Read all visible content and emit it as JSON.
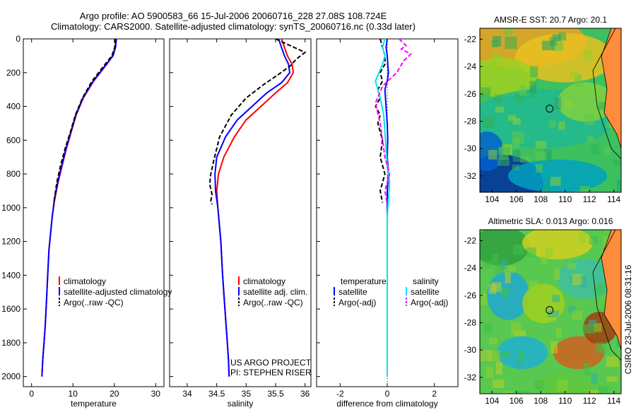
{
  "header": {
    "title_line1": "Argo profile: AO 5900583_66 15-Jul-2006 20060716_228 27.08S 108.724E",
    "title_line2": "Climatology: CARS2000. Satellite-adjusted climatology: synTS_20060716.nc (0.33d later)"
  },
  "colors": {
    "climatology": "#ff0000",
    "satellite": "#0000ff",
    "argo": "#000000",
    "salinity_satellite": "#00e5ee",
    "salinity_argo": "#ff00ff"
  },
  "chart_data": [
    {
      "id": "temperature",
      "type": "line",
      "xlabel": "temperature",
      "ylabel": "",
      "xlim": [
        -2,
        32
      ],
      "ylim": [
        2060,
        0
      ],
      "y_reversed": true,
      "xticks": [
        0,
        10,
        20,
        30
      ],
      "yticks": [
        0,
        200,
        400,
        600,
        800,
        1000,
        1200,
        1400,
        1600,
        1800,
        2000
      ],
      "legend": [
        "climatology",
        "satellite-adjusted climatology",
        "Argo(..raw -QC)"
      ],
      "series": [
        {
          "name": "climatology",
          "style": "solid",
          "x": [
            20.4,
            20.2,
            19.6,
            18.2,
            15.0,
            12.5,
            10.8,
            9.6,
            8.4,
            7.4,
            6.4,
            5.6,
            5.0,
            4.6,
            4.2,
            3.9,
            3.6,
            3.3,
            3.0,
            2.7,
            2.5
          ],
          "y": [
            0,
            50,
            100,
            150,
            250,
            350,
            450,
            550,
            650,
            750,
            850,
            950,
            1050,
            1150,
            1250,
            1400,
            1550,
            1700,
            1800,
            1900,
            2000
          ]
        },
        {
          "name": "satellite-adjusted climatology",
          "style": "solid",
          "x": [
            20.5,
            20.3,
            19.7,
            18.1,
            14.9,
            12.4,
            10.7,
            9.5,
            8.3,
            7.3,
            6.3,
            5.5,
            5.0,
            4.6,
            4.2,
            3.9,
            3.6,
            3.3,
            3.0,
            2.7,
            2.5
          ],
          "y": [
            0,
            50,
            100,
            150,
            250,
            350,
            450,
            550,
            650,
            750,
            850,
            950,
            1050,
            1150,
            1250,
            1400,
            1550,
            1700,
            1800,
            1900,
            2000
          ]
        },
        {
          "name": "Argo(..raw -QC)",
          "style": "dashed",
          "x": [
            20.3,
            20.1,
            19.4,
            17.8,
            14.6,
            12.3,
            10.6,
            9.4,
            8.1,
            7.0,
            6.1,
            5.4
          ],
          "y": [
            0,
            50,
            100,
            150,
            250,
            350,
            450,
            550,
            650,
            750,
            850,
            970
          ]
        }
      ]
    },
    {
      "id": "salinity",
      "type": "line",
      "xlabel": "salinity",
      "ylabel": "",
      "xlim": [
        33.7,
        36.1
      ],
      "ylim": [
        2060,
        0
      ],
      "y_reversed": true,
      "xticks": [
        34,
        34.5,
        35,
        35.5,
        36
      ],
      "legend": [
        "climatology",
        "satellite adj. clim.",
        "Argo(..raw -QC)"
      ],
      "annotations": [
        "US ARGO PROJECT",
        "PI: STEPHEN RISER"
      ],
      "series": [
        {
          "name": "climatology",
          "style": "solid",
          "x": [
            35.6,
            35.65,
            35.7,
            35.78,
            35.8,
            35.7,
            35.5,
            35.25,
            35.0,
            34.8,
            34.62,
            34.53,
            34.5,
            34.52,
            34.57,
            34.6,
            34.64,
            34.66,
            34.68,
            34.7,
            34.71
          ],
          "y": [
            0,
            50,
            100,
            150,
            200,
            260,
            320,
            400,
            480,
            580,
            700,
            800,
            900,
            1000,
            1200,
            1400,
            1600,
            1700,
            1800,
            1900,
            2000
          ]
        },
        {
          "name": "satellite adj. clim.",
          "style": "solid",
          "x": [
            35.55,
            35.6,
            35.65,
            35.72,
            35.74,
            35.6,
            35.35,
            35.1,
            34.85,
            34.65,
            34.5,
            34.47,
            34.48,
            34.52,
            34.57,
            34.6,
            34.64,
            34.66,
            34.68,
            34.7,
            34.71
          ],
          "y": [
            0,
            50,
            100,
            150,
            200,
            260,
            320,
            400,
            480,
            580,
            700,
            800,
            900,
            1000,
            1200,
            1400,
            1600,
            1700,
            1800,
            1900,
            2000
          ]
        },
        {
          "name": "Argo(..raw -QC)",
          "style": "dashed",
          "x": [
            35.5,
            35.75,
            36.0,
            35.85,
            35.75,
            35.55,
            35.3,
            35.0,
            34.75,
            34.55,
            34.45,
            34.4,
            34.38,
            34.42,
            34.4,
            34.42
          ],
          "y": [
            0,
            40,
            80,
            120,
            160,
            210,
            270,
            350,
            450,
            580,
            720,
            800,
            860,
            920,
            960,
            980
          ]
        }
      ]
    },
    {
      "id": "difference",
      "type": "line",
      "xlabel": "difference from climatology",
      "ylabel": "",
      "xlim": [
        -3,
        3
      ],
      "ylim": [
        2060,
        0
      ],
      "y_reversed": true,
      "xticks": [
        -2,
        0,
        2
      ],
      "legend_temperature_header": "temperature",
      "legend_salinity_header": "salinity",
      "legend": [
        "satellite",
        "Argo(-adj)",
        "satellite",
        "Argo(-adj)"
      ],
      "series": [
        {
          "name": "satellite",
          "group": "temperature",
          "style": "solid",
          "x": [
            0,
            -0.05,
            0,
            0.02,
            0.05,
            0,
            -0.1,
            -0.05,
            0,
            0.02,
            0,
            0.05,
            0,
            0,
            0,
            0
          ],
          "y": [
            0,
            50,
            100,
            150,
            200,
            250,
            300,
            400,
            500,
            600,
            700,
            800,
            900,
            1000,
            1500,
            2000
          ]
        },
        {
          "name": "Argo(-adj)",
          "group": "temperature",
          "style": "dashed",
          "x": [
            -0.3,
            -0.2,
            -0.1,
            -0.1,
            -0.3,
            -0.2,
            -0.4,
            -0.3,
            -0.5,
            -0.3,
            -0.4,
            -0.2,
            -0.3,
            -0.1,
            -0.3,
            -0.2
          ],
          "y": [
            0,
            50,
            100,
            150,
            200,
            250,
            300,
            350,
            400,
            450,
            500,
            600,
            700,
            800,
            900,
            970
          ]
        },
        {
          "name": "satellite",
          "group": "salinity",
          "style": "solid",
          "x": [
            -0.1,
            -0.2,
            -0.1,
            -0.2,
            -0.5,
            -0.3,
            -0.15,
            -0.1,
            -0.05,
            0,
            0.1,
            0.05,
            0,
            0,
            0,
            0
          ],
          "y": [
            0,
            50,
            100,
            150,
            250,
            350,
            450,
            550,
            650,
            750,
            850,
            950,
            1050,
            1200,
            1600,
            2000
          ]
        },
        {
          "name": "Argo(-adj)",
          "group": "salinity",
          "style": "dashed",
          "x": [
            0.5,
            0.8,
            0.6,
            1.0,
            0.7,
            0.4,
            -0.2,
            -0.5,
            -0.3,
            -0.2,
            -0.1,
            0.1,
            -0.1,
            0
          ],
          "y": [
            0,
            40,
            60,
            90,
            130,
            200,
            280,
            380,
            500,
            600,
            700,
            800,
            900,
            980
          ]
        }
      ]
    },
    {
      "id": "sst_map",
      "type": "heatmap",
      "title": "AMSR-E SST: 20.7 Argo: 20.1",
      "xlim": [
        103,
        114.6
      ],
      "ylim": [
        -33.2,
        -21.2
      ],
      "xticks": [
        104,
        106,
        108,
        110,
        112,
        114
      ],
      "yticks": [
        -22,
        -24,
        -26,
        -28,
        -30,
        -32
      ],
      "marker": {
        "x": 108.724,
        "y": -27.08
      }
    },
    {
      "id": "sla_map",
      "type": "heatmap",
      "title": "Altimetric SLA: 0.013 Argo: 0.016",
      "xlim": [
        103,
        114.6
      ],
      "ylim": [
        -33.2,
        -21.2
      ],
      "xticks": [
        104,
        106,
        108,
        110,
        112,
        114
      ],
      "yticks": [
        -22,
        -24,
        -26,
        -28,
        -30,
        -32
      ],
      "marker": {
        "x": 108.724,
        "y": -27.08
      }
    }
  ],
  "footer": {
    "stamp": "CSIRO 23-Jul-2006 08:31:16"
  }
}
